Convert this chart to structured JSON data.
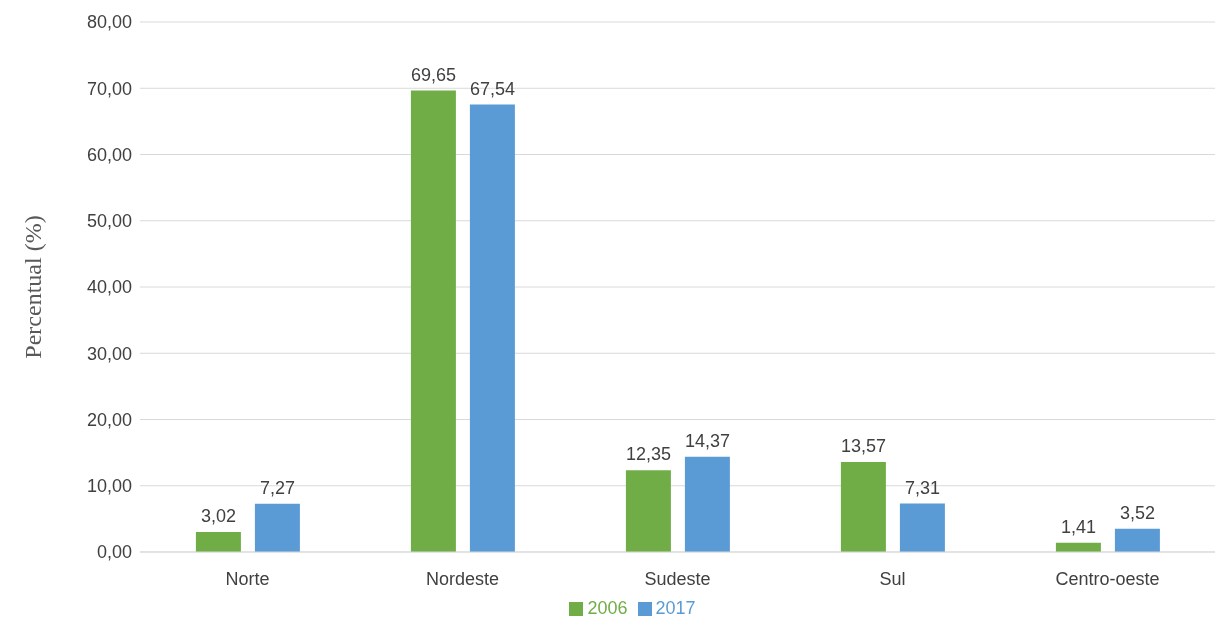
{
  "chart_data": {
    "type": "bar",
    "ylabel": "Percentual (%)",
    "categories": [
      "Norte",
      "Nordeste",
      "Sudeste",
      "Sul",
      "Centro-oeste"
    ],
    "series": [
      {
        "name": "2006",
        "color": "#70ad47",
        "values": [
          3.02,
          69.65,
          12.35,
          13.57,
          1.41
        ],
        "value_labels": [
          "3,02",
          "69,65",
          "12,35",
          "13,57",
          "1,41"
        ]
      },
      {
        "name": "2017",
        "color": "#5b9bd5",
        "values": [
          7.27,
          67.54,
          14.37,
          7.31,
          3.52
        ],
        "value_labels": [
          "7,27",
          "67,54",
          "14,37",
          "7,31",
          "3,52"
        ]
      }
    ],
    "ylim": [
      0,
      80
    ],
    "yticks": [
      {
        "value": 0,
        "label": "0,00"
      },
      {
        "value": 10,
        "label": "10,00"
      },
      {
        "value": 20,
        "label": "20,00"
      },
      {
        "value": 30,
        "label": "30,00"
      },
      {
        "value": 40,
        "label": "40,00"
      },
      {
        "value": 50,
        "label": "50,00"
      },
      {
        "value": 60,
        "label": "60,00"
      },
      {
        "value": 70,
        "label": "70,00"
      },
      {
        "value": 80,
        "label": "80,00"
      }
    ],
    "grid": "y",
    "legend": "bottom"
  }
}
